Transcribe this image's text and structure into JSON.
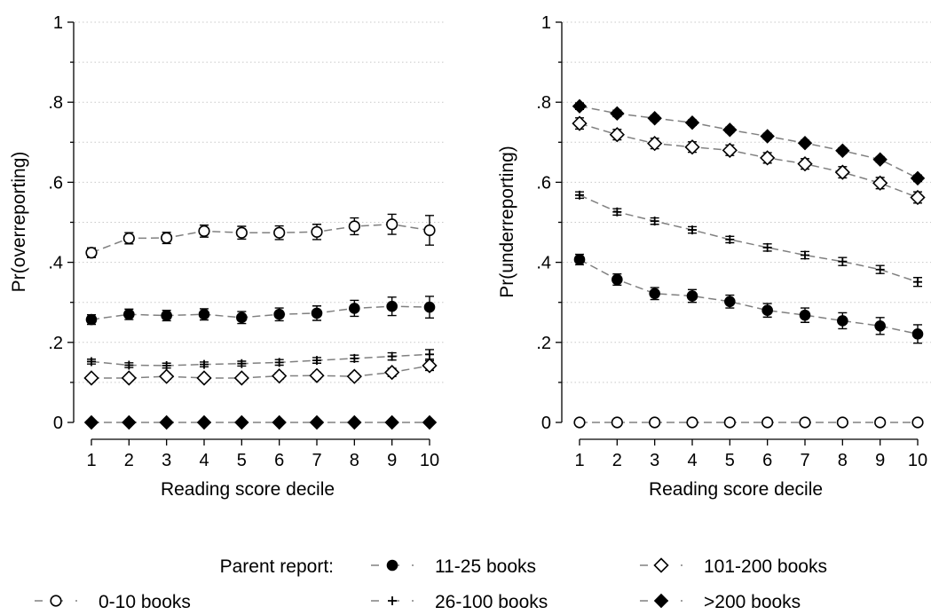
{
  "chart_data": [
    {
      "type": "line",
      "title": "",
      "xlabel": "Reading score decile",
      "ylabel": "Pr(overreporting)",
      "x": [
        1,
        2,
        3,
        4,
        5,
        6,
        7,
        8,
        9,
        10
      ],
      "xlim": [
        1,
        10
      ],
      "ylim": [
        0,
        1
      ],
      "yticks": [
        0,
        0.2,
        0.4,
        0.6,
        0.8,
        1
      ],
      "ytick_labels": [
        "0",
        ".2",
        ".4",
        ".6",
        ".8",
        "1"
      ],
      "grid": "horizontal dotted every 0.1",
      "series": [
        {
          "name": "0-10 books",
          "marker": "hollow-circle",
          "values": [
            0.424,
            0.46,
            0.461,
            0.478,
            0.474,
            0.474,
            0.476,
            0.49,
            0.495,
            0.48
          ],
          "err": [
            0.012,
            0.014,
            0.014,
            0.015,
            0.016,
            0.017,
            0.019,
            0.021,
            0.025,
            0.037
          ]
        },
        {
          "name": "11-25 books",
          "marker": "filled-circle",
          "values": [
            0.257,
            0.27,
            0.267,
            0.27,
            0.262,
            0.27,
            0.273,
            0.285,
            0.29,
            0.288
          ],
          "err": [
            0.012,
            0.013,
            0.013,
            0.014,
            0.015,
            0.016,
            0.018,
            0.02,
            0.023,
            0.027
          ]
        },
        {
          "name": "26-100 books",
          "marker": "plus",
          "values": [
            0.152,
            0.143,
            0.142,
            0.145,
            0.147,
            0.15,
            0.155,
            0.16,
            0.165,
            0.17
          ],
          "err": [
            0.006,
            0.006,
            0.006,
            0.006,
            0.006,
            0.007,
            0.007,
            0.008,
            0.009,
            0.012
          ]
        },
        {
          "name": "101-200 books",
          "marker": "hollow-diamond",
          "values": [
            0.111,
            0.111,
            0.115,
            0.111,
            0.111,
            0.116,
            0.117,
            0.115,
            0.125,
            0.142
          ],
          "err": [
            0.006,
            0.007,
            0.007,
            0.007,
            0.007,
            0.008,
            0.008,
            0.008,
            0.01,
            0.012
          ]
        },
        {
          "name": ">200 books",
          "marker": "filled-diamond",
          "values": [
            0,
            0,
            0,
            0,
            0,
            0,
            0,
            0,
            0,
            0
          ],
          "err": [
            0,
            0,
            0,
            0,
            0,
            0,
            0,
            0,
            0,
            0
          ]
        }
      ]
    },
    {
      "type": "line",
      "title": "",
      "xlabel": "Reading score decile",
      "ylabel": "Pr(underreporting)",
      "x": [
        1,
        2,
        3,
        4,
        5,
        6,
        7,
        8,
        9,
        10
      ],
      "xlim": [
        1,
        10
      ],
      "ylim": [
        0,
        1
      ],
      "yticks": [
        0,
        0.2,
        0.4,
        0.6,
        0.8,
        1
      ],
      "ytick_labels": [
        "0",
        ".2",
        ".4",
        ".6",
        ".8",
        "1"
      ],
      "grid": "horizontal dotted every 0.1",
      "series": [
        {
          "name": "0-10 books",
          "marker": "hollow-circle",
          "values": [
            0,
            0,
            0,
            0,
            0,
            0,
            0,
            0,
            0,
            0
          ],
          "err": [
            0,
            0,
            0,
            0,
            0,
            0,
            0,
            0,
            0,
            0
          ]
        },
        {
          "name": "11-25 books",
          "marker": "filled-circle",
          "values": [
            0.407,
            0.357,
            0.322,
            0.316,
            0.302,
            0.28,
            0.268,
            0.254,
            0.241,
            0.221
          ],
          "err": [
            0.013,
            0.014,
            0.015,
            0.016,
            0.016,
            0.017,
            0.018,
            0.02,
            0.021,
            0.023
          ]
        },
        {
          "name": "26-100 books",
          "marker": "plus",
          "values": [
            0.568,
            0.526,
            0.503,
            0.481,
            0.457,
            0.437,
            0.418,
            0.402,
            0.382,
            0.351
          ],
          "err": [
            0.008,
            0.008,
            0.008,
            0.008,
            0.008,
            0.009,
            0.009,
            0.01,
            0.01,
            0.011
          ]
        },
        {
          "name": "101-200 books",
          "marker": "hollow-diamond",
          "values": [
            0.747,
            0.719,
            0.697,
            0.688,
            0.68,
            0.661,
            0.646,
            0.625,
            0.598,
            0.562
          ],
          "err": [
            0.014,
            0.013,
            0.013,
            0.013,
            0.013,
            0.013,
            0.013,
            0.014,
            0.014,
            0.014
          ]
        },
        {
          "name": ">200 books",
          "marker": "filled-diamond",
          "values": [
            0.79,
            0.772,
            0.76,
            0.749,
            0.731,
            0.715,
            0.698,
            0.679,
            0.657,
            0.61
          ],
          "err": [
            0.008,
            0.008,
            0.007,
            0.007,
            0.007,
            0.007,
            0.007,
            0.007,
            0.007,
            0.008
          ]
        }
      ]
    }
  ],
  "legend": {
    "title": "Parent report:",
    "items": [
      {
        "label": "11-25 books",
        "marker": "filled-circle"
      },
      {
        "label": "101-200 books",
        "marker": "hollow-diamond"
      },
      {
        "label": "0-10 books",
        "marker": "hollow-circle"
      },
      {
        "label": "26-100 books",
        "marker": "plus"
      },
      {
        "label": ">200 books",
        "marker": "filled-diamond"
      }
    ]
  },
  "colors": {
    "line": "#808080",
    "marker": "#000000",
    "grid": "#c8c8c8",
    "axis": "#000000"
  }
}
